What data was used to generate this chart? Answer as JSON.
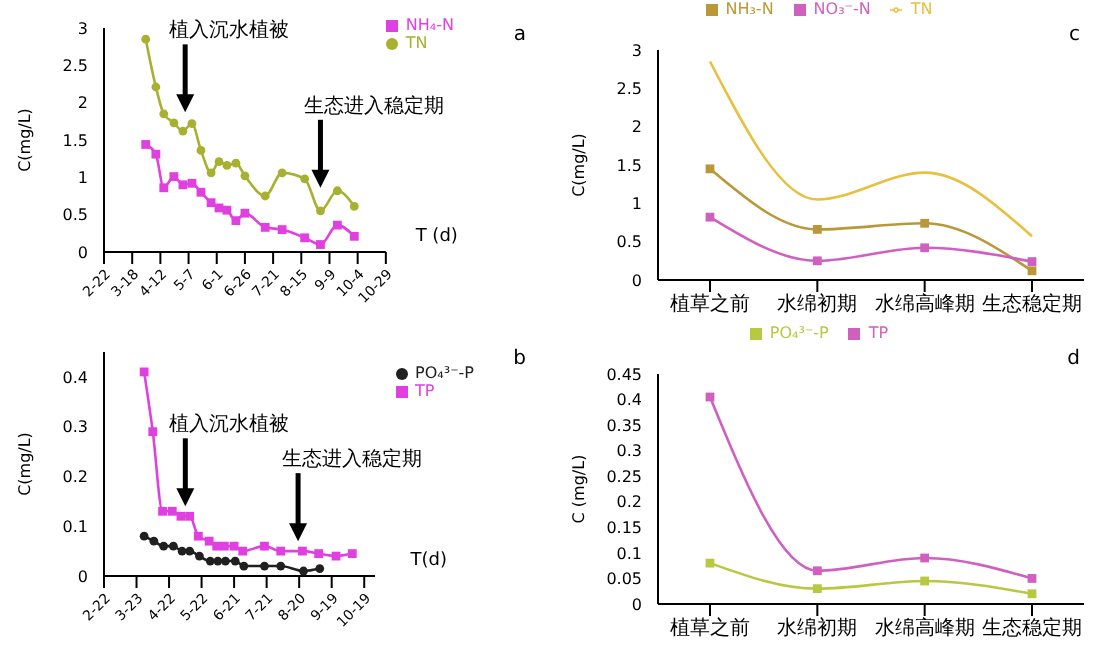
{
  "chart_data": [
    {
      "type": "line",
      "ylabel": "C(mg/L)",
      "xlabel": "T (d)",
      "xlim": [
        "--02-22",
        "--10-29"
      ],
      "xticks": [
        {
          "value": "--02-22",
          "label": "2-22"
        },
        {
          "value": "--03-18",
          "label": "3-18"
        },
        {
          "value": "--04-12",
          "label": "4-12"
        },
        {
          "value": "--05-07",
          "label": "5-7"
        },
        {
          "value": "--06-01",
          "label": "6-1"
        },
        {
          "value": "--06-26",
          "label": "6-26"
        },
        {
          "value": "--07-21",
          "label": "7-21"
        },
        {
          "value": "--08-15",
          "label": "8-15"
        },
        {
          "value": "--09-09",
          "label": "9-9"
        },
        {
          "value": "--10-04",
          "label": "10-4"
        },
        {
          "value": "--10-29",
          "label": "10-29"
        }
      ],
      "ylim": [
        0,
        3
      ],
      "yticks": [
        0,
        0.5,
        1,
        1.5,
        2,
        2.5,
        3
      ],
      "grid": false,
      "legend": "top right",
      "x": [
        "--03-30",
        "--04-08",
        "--04-15",
        "--04-24",
        "--05-02",
        "--05-10",
        "--05-18",
        "--05-27",
        "--06-03",
        "--06-10",
        "--06-18",
        "--06-26",
        "--07-14",
        "--07-29",
        "--08-18",
        "--09-01",
        "--09-16",
        "--10-01"
      ],
      "series": [
        {
          "name": "TN",
          "color": "#a8b030",
          "marker": "circle",
          "values": [
            2.85,
            2.21,
            1.85,
            1.73,
            1.62,
            1.72,
            1.36,
            1.06,
            1.21,
            1.16,
            1.19,
            1.02,
            0.75,
            1.06,
            0.98,
            0.55,
            0.82,
            0.61
          ]
        },
        {
          "name": "NH₄-N",
          "color": "#e040e0",
          "marker": "square",
          "values": [
            1.44,
            1.31,
            0.86,
            1.01,
            0.9,
            0.92,
            0.8,
            0.66,
            0.59,
            0.56,
            0.42,
            0.52,
            0.33,
            0.3,
            0.19,
            0.1,
            0.36,
            0.21
          ]
        }
      ],
      "annotations": [
        "a",
        {
          "text": "植入沉水植被",
          "x": "--05-04",
          "y": 1.87
        },
        {
          "text": "生态进入稳定期",
          "x": "--09-01",
          "y": 0.86
        }
      ]
    },
    {
      "type": "line",
      "ylabel": "C(mg/L)",
      "xlabel": "T(d)",
      "xlim": [
        "--02-22",
        "--10-29"
      ],
      "xticks": [
        {
          "value": "--02-22",
          "label": "2-22"
        },
        {
          "value": "--03-23",
          "label": "3-23"
        },
        {
          "value": "--04-22",
          "label": "4-22"
        },
        {
          "value": "--05-22",
          "label": "5-22"
        },
        {
          "value": "--06-21",
          "label": "6-21"
        },
        {
          "value": "--07-21",
          "label": "7-21"
        },
        {
          "value": "--08-20",
          "label": "8-20"
        },
        {
          "value": "--09-19",
          "label": "9-19"
        },
        {
          "value": "--10-19",
          "label": "10-19"
        }
      ],
      "ylim": [
        0,
        0.45
      ],
      "yticks": [
        0,
        0.1,
        0.2,
        0.3,
        0.4
      ],
      "grid": false,
      "legend": "right",
      "series": [
        {
          "name": "PO₄³⁻-P",
          "color": "#202020",
          "marker": "circle",
          "x": [
            "--03-30",
            "--04-08",
            "--04-17",
            "--04-26",
            "--05-04",
            "--05-11",
            "--05-20",
            "--05-30",
            "--06-06",
            "--06-13",
            "--06-22",
            "--06-30",
            "--07-19",
            "--08-03",
            "--08-24",
            "--09-08"
          ],
          "values": [
            0.08,
            0.07,
            0.06,
            0.06,
            0.05,
            0.05,
            0.04,
            0.03,
            0.03,
            0.03,
            0.03,
            0.02,
            0.02,
            0.02,
            0.01,
            0.015
          ]
        },
        {
          "name": "TP",
          "color": "#e040e0",
          "marker": "square",
          "x": [
            "--03-30",
            "--04-07",
            "--04-16",
            "--04-25",
            "--05-03",
            "--05-11",
            "--05-19",
            "--05-29",
            "--06-05",
            "--06-12",
            "--06-21",
            "--06-29",
            "--07-19",
            "--08-03",
            "--08-23",
            "--09-07",
            "--09-23",
            "--10-08"
          ],
          "values": [
            0.41,
            0.29,
            0.13,
            0.13,
            0.12,
            0.12,
            0.08,
            0.07,
            0.06,
            0.06,
            0.06,
            0.05,
            0.06,
            0.05,
            0.05,
            0.045,
            0.04,
            0.045
          ]
        }
      ],
      "annotations": [
        "b",
        {
          "text": "植入沉水植被",
          "x": "--05-07",
          "y": 0.14
        },
        {
          "text": "生态进入稳定期",
          "x": "--08-19",
          "y": 0.07
        }
      ]
    },
    {
      "type": "line",
      "ylabel": "C(mg/L)",
      "categories": [
        "植草之前",
        "水绵初期",
        "水绵高峰期",
        "生态稳定期"
      ],
      "ylim": [
        0,
        3
      ],
      "yticks": [
        0,
        0.5,
        1,
        1.5,
        2,
        2.5,
        3
      ],
      "grid": false,
      "legend": "top",
      "series": [
        {
          "name": "NH₃-N",
          "color": "#b89838",
          "marker": "square",
          "values": [
            1.45,
            0.66,
            0.74,
            0.12
          ]
        },
        {
          "name": "NO₃⁻-N",
          "color": "#d060c0",
          "marker": "square",
          "values": [
            0.82,
            0.25,
            0.42,
            0.24
          ]
        },
        {
          "name": "TN",
          "color": "#e8c040",
          "marker": "none",
          "values": [
            2.85,
            1.05,
            1.4,
            0.57
          ]
        }
      ],
      "annotations": [
        "c"
      ]
    },
    {
      "type": "line",
      "ylabel": "C (mg/L)",
      "categories": [
        "植草之前",
        "水绵初期",
        "水绵高峰期",
        "生态稳定期"
      ],
      "ylim": [
        0,
        0.45
      ],
      "yticks": [
        0,
        0.05,
        0.1,
        0.15,
        0.2,
        0.25,
        0.3,
        0.35,
        0.4,
        0.45
      ],
      "grid": false,
      "legend": "top",
      "series": [
        {
          "name": "PO₄³⁻-P",
          "color": "#b8c840",
          "marker": "square",
          "values": [
            0.08,
            0.03,
            0.045,
            0.02
          ]
        },
        {
          "name": "TP",
          "color": "#d060c0",
          "marker": "square",
          "values": [
            0.405,
            0.065,
            0.09,
            0.05
          ]
        }
      ],
      "annotations": [
        "d"
      ]
    }
  ]
}
